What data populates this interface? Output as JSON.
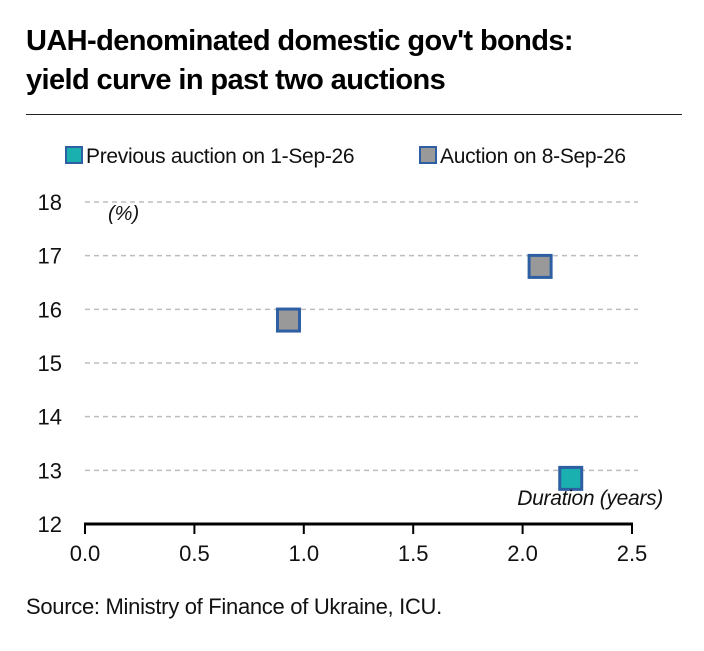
{
  "title_line1": "UAH-denominated domestic gov't bonds:",
  "title_line2": "yield curve in past two auctions",
  "source": "Source: Ministry of Finance of Ukraine, ICU.",
  "colors": {
    "previous_fill": "#1ab0b0",
    "auction_fill": "#999999",
    "marker_border": "#2e5fa3",
    "grid": "#bdbdbd",
    "axis": "#000000"
  },
  "chart_data": {
    "type": "scatter",
    "title": "UAH-denominated domestic gov't bonds: yield curve in past two auctions",
    "xlabel": "Duration (years)",
    "ylabel": "(%)",
    "xlim": [
      0.0,
      2.5
    ],
    "ylim": [
      12,
      18
    ],
    "xticks": [
      "0.0",
      "0.5",
      "1.0",
      "1.5",
      "2.0",
      "2.5"
    ],
    "yticks": [
      "12",
      "13",
      "14",
      "15",
      "16",
      "17",
      "18"
    ],
    "grid": "horizontal dashed",
    "legend_position": "top",
    "series": [
      {
        "name": "Previous auction on 1-Sep-26",
        "points": [
          {
            "x": 2.22,
            "y": 12.85
          }
        ]
      },
      {
        "name": "Auction on 8-Sep-26",
        "points": [
          {
            "x": 0.93,
            "y": 15.8
          },
          {
            "x": 2.08,
            "y": 16.8
          }
        ]
      }
    ]
  }
}
